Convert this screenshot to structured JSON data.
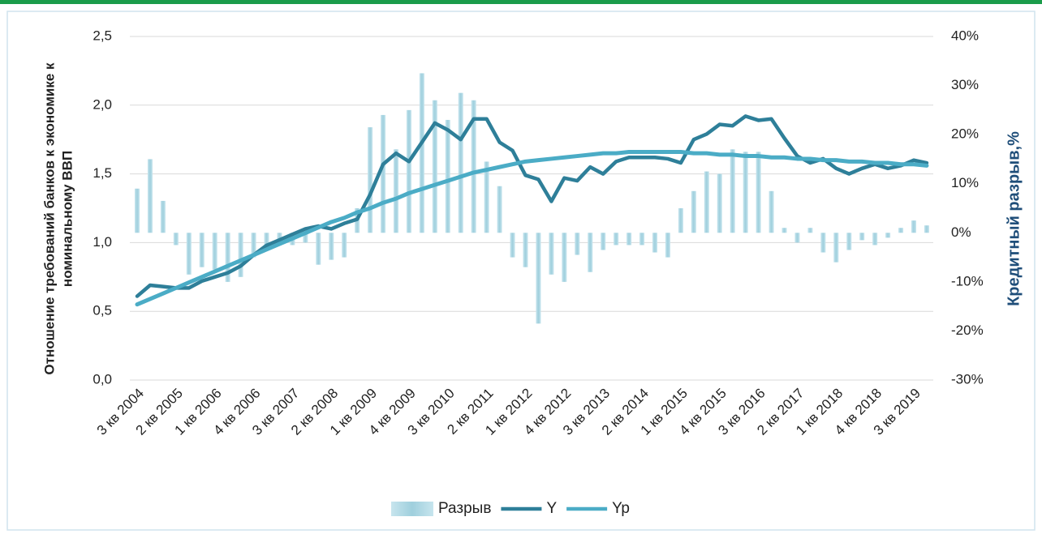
{
  "chart_data": {
    "type": "bar-line",
    "ylabel": [
      "Отношение требований банков  к экономике к",
      "номинальному ВВП"
    ],
    "y2label": "Кредитный разрыв,%",
    "categories": [
      "3 кв 2004",
      null,
      null,
      "2 кв 2005",
      null,
      null,
      "1 кв 2006",
      null,
      null,
      "4 кв 2006",
      null,
      null,
      "3 кв 2007",
      null,
      null,
      "2 кв 2008",
      null,
      null,
      "1 кв 2009",
      null,
      null,
      "4 кв 2009",
      null,
      null,
      "3 кв 2010",
      null,
      null,
      "2 кв 2011",
      null,
      null,
      "1 кв 2012",
      null,
      null,
      "4 кв 2012",
      null,
      null,
      "3 кв 2013",
      null,
      null,
      "2 кв 2014",
      null,
      null,
      "1 кв 2015",
      null,
      null,
      "4 кв 2015",
      null,
      null,
      "3 кв 2016",
      null,
      null,
      "2 кв 2017",
      null,
      null,
      "1 кв 2018",
      null,
      null,
      "4 кв 2018",
      null,
      null,
      "3 кв 2019",
      null
    ],
    "series": [
      {
        "name": "Разрыв",
        "type": "bar",
        "axis": "y2",
        "color": "#a6d3e0",
        "values": [
          9,
          15,
          6.5,
          -2.5,
          -8.5,
          -7,
          -7.5,
          -10,
          -9,
          -5,
          -3,
          -2,
          -2.5,
          -2,
          -6.5,
          -5.5,
          -5,
          5,
          21.5,
          24,
          17,
          25,
          32.5,
          27,
          23,
          28.5,
          27,
          14.5,
          9.5,
          -5,
          -7,
          -18.5,
          -8.5,
          -10,
          -4.5,
          -8,
          -3.5,
          -2.5,
          -2.5,
          -2.5,
          -4,
          -5,
          5,
          8.5,
          12.5,
          12,
          17,
          16.5,
          16.5,
          8.5,
          1,
          -2,
          1,
          -4,
          -6,
          -3.5,
          -1.5,
          -2.5,
          -1,
          1,
          2.5,
          1.5
        ]
      },
      {
        "name": "Y",
        "type": "line",
        "color": "#2e7f99",
        "values": [
          0.61,
          0.69,
          0.68,
          0.67,
          0.67,
          0.72,
          0.75,
          0.78,
          0.83,
          0.91,
          0.98,
          1.02,
          1.06,
          1.1,
          1.12,
          1.1,
          1.14,
          1.17,
          1.35,
          1.57,
          1.65,
          1.59,
          1.73,
          1.87,
          1.82,
          1.75,
          1.9,
          1.9,
          1.73,
          1.67,
          1.49,
          1.46,
          1.3,
          1.47,
          1.45,
          1.55,
          1.5,
          1.59,
          1.62,
          1.62,
          1.62,
          1.61,
          1.58,
          1.75,
          1.79,
          1.86,
          1.85,
          1.92,
          1.89,
          1.9,
          1.76,
          1.63,
          1.58,
          1.61,
          1.54,
          1.5,
          1.54,
          1.57,
          1.54,
          1.56,
          1.6,
          1.58
        ]
      },
      {
        "name": "Yp",
        "type": "line",
        "color": "#4bacc6",
        "values": [
          0.55,
          0.59,
          0.63,
          0.67,
          0.71,
          0.75,
          0.79,
          0.83,
          0.87,
          0.91,
          0.95,
          0.99,
          1.03,
          1.07,
          1.11,
          1.15,
          1.18,
          1.22,
          1.25,
          1.29,
          1.32,
          1.36,
          1.39,
          1.42,
          1.45,
          1.48,
          1.51,
          1.53,
          1.55,
          1.57,
          1.59,
          1.6,
          1.61,
          1.62,
          1.63,
          1.64,
          1.65,
          1.65,
          1.66,
          1.66,
          1.66,
          1.66,
          1.66,
          1.65,
          1.65,
          1.64,
          1.64,
          1.63,
          1.63,
          1.62,
          1.62,
          1.61,
          1.61,
          1.6,
          1.6,
          1.59,
          1.59,
          1.58,
          1.58,
          1.57,
          1.57,
          1.56
        ]
      }
    ],
    "ylim": [
      0,
      2.5
    ],
    "yticks": [
      {
        "value": 0,
        "label": "0,0"
      },
      {
        "value": 0.5,
        "label": "0,5"
      },
      {
        "value": 1,
        "label": "1,0"
      },
      {
        "value": 1.5,
        "label": "1,5"
      },
      {
        "value": 2,
        "label": "2,0"
      },
      {
        "value": 2.5,
        "label": "2,5"
      }
    ],
    "y2lim": [
      -30,
      40
    ],
    "y2ticks": [
      {
        "value": -30,
        "label": "-30%"
      },
      {
        "value": -20,
        "label": "-20%"
      },
      {
        "value": -10,
        "label": "-10%"
      },
      {
        "value": 0,
        "label": "0%"
      },
      {
        "value": 10,
        "label": "10%"
      },
      {
        "value": 20,
        "label": "20%"
      },
      {
        "value": 30,
        "label": "30%"
      },
      {
        "value": 40,
        "label": "40%"
      }
    ],
    "grid": true,
    "legend": "bottom"
  }
}
